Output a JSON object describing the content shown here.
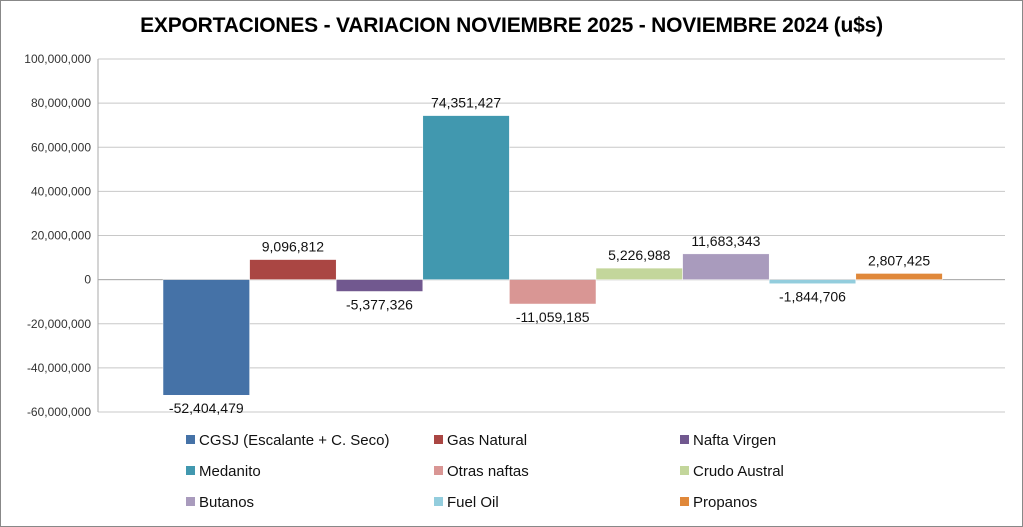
{
  "chart_data": {
    "type": "bar",
    "title": "EXPORTACIONES - VARIACION NOVIEMBRE 2025 - NOVIEMBRE 2024 (u$s)",
    "xlabel": "",
    "ylabel": "",
    "ylim": [
      -60000000,
      100000000
    ],
    "yticks": [
      100000000,
      80000000,
      60000000,
      40000000,
      20000000,
      0,
      -20000000,
      -40000000,
      -60000000
    ],
    "ytick_labels": [
      "100,000,000",
      "80,000,000",
      "60,000,000",
      "40,000,000",
      "20,000,000",
      "0",
      "-20,000,000",
      "-40,000,000",
      "-60,000,000"
    ],
    "grid": true,
    "legend_position": "bottom",
    "series": [
      {
        "name": "CGSJ (Escalante + C. Seco)",
        "value": -52404479,
        "label": "-52,404,479",
        "color": "#4572A7"
      },
      {
        "name": "Gas Natural",
        "value": 9096812,
        "label": "9,096,812",
        "color": "#AA4643"
      },
      {
        "name": "Nafta Virgen",
        "value": -5377326,
        "label": "-5,377,326",
        "color": "#71588F"
      },
      {
        "name": "Medanito",
        "value": 74351427,
        "label": "74,351,427",
        "color": "#4198AF"
      },
      {
        "name": "Otras naftas",
        "value": -11059185,
        "label": "-11,059,185",
        "color": "#D99694"
      },
      {
        "name": "Crudo Austral",
        "value": 5226988,
        "label": "5,226,988",
        "color": "#C3D69B"
      },
      {
        "name": "Butanos",
        "value": 11683343,
        "label": "11,683,343",
        "color": "#A99BBD"
      },
      {
        "name": "Fuel Oil",
        "value": -1844706,
        "label": "-1,844,706",
        "color": "#93CDDD"
      },
      {
        "name": "Propanos",
        "value": 2807425,
        "label": "2,807,425",
        "color": "#E0883A"
      }
    ]
  }
}
